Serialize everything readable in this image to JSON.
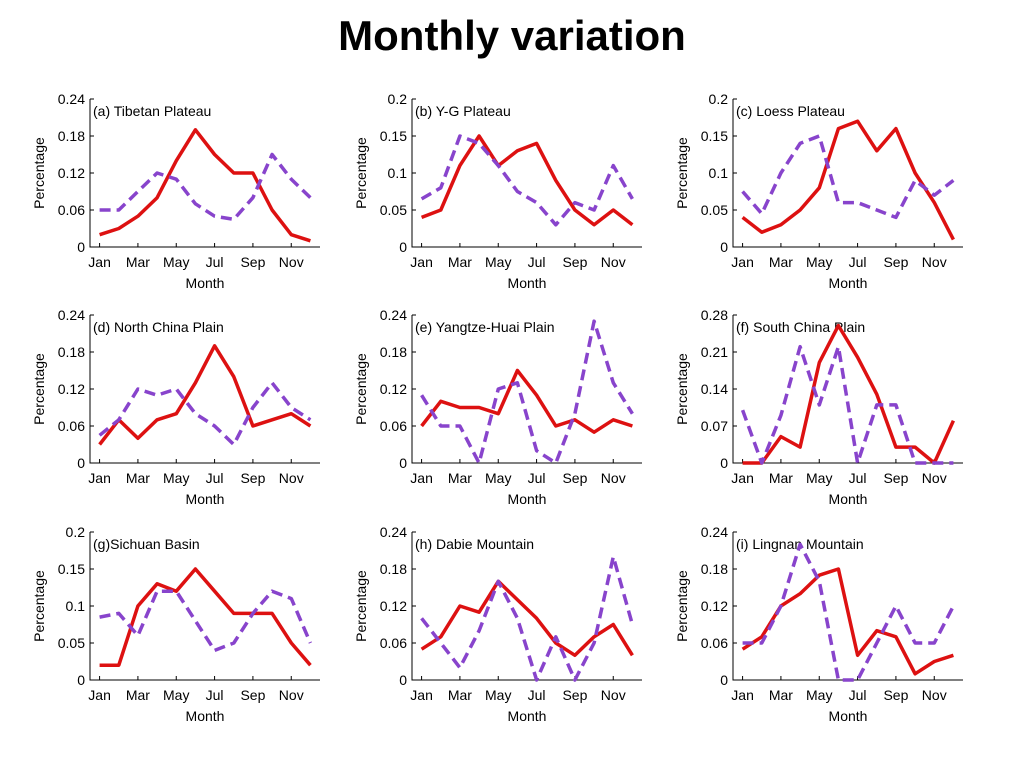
{
  "page_title": "Monthly variation",
  "colors": {
    "solid_series": "#dd1111",
    "dashed_series": "#8844cc",
    "axis": "#000000"
  },
  "chart_data": [
    {
      "type": "line",
      "title": "(a) Tibetan Plateau",
      "xlabel": "Month",
      "ylabel": "Percentage",
      "x": [
        1,
        2,
        3,
        4,
        5,
        6,
        7,
        8,
        9,
        10,
        11,
        12
      ],
      "xticks": [
        1,
        3,
        5,
        7,
        9,
        11
      ],
      "xtick_labels": [
        "Jan",
        "Mar",
        "May",
        "Jul",
        "Sep",
        "Nov"
      ],
      "ylim": [
        0,
        0.24
      ],
      "yticks": [
        0,
        0.06,
        0.12,
        0.18,
        0.24
      ],
      "ytick_labels": [
        "0",
        "0.06",
        "0.12",
        "0.18",
        "0.24"
      ],
      "series": [
        {
          "name": "solid",
          "style": "solid",
          "values": [
            0.02,
            0.03,
            0.05,
            0.08,
            0.14,
            0.19,
            0.15,
            0.12,
            0.12,
            0.06,
            0.02,
            0.01
          ]
        },
        {
          "name": "dashed",
          "style": "dashed",
          "values": [
            0.06,
            0.06,
            0.09,
            0.12,
            0.11,
            0.07,
            0.05,
            0.045,
            0.08,
            0.15,
            0.11,
            0.08
          ]
        }
      ]
    },
    {
      "type": "line",
      "title": "(b) Y-G Plateau",
      "xlabel": "Month",
      "ylabel": "Percentage",
      "x": [
        1,
        2,
        3,
        4,
        5,
        6,
        7,
        8,
        9,
        10,
        11,
        12
      ],
      "xticks": [
        1,
        3,
        5,
        7,
        9,
        11
      ],
      "xtick_labels": [
        "Jan",
        "Mar",
        "May",
        "Jul",
        "Sep",
        "Nov"
      ],
      "ylim": [
        0,
        0.2
      ],
      "yticks": [
        0,
        0.05,
        0.1,
        0.15,
        0.2
      ],
      "ytick_labels": [
        "0",
        "0.05",
        "0.1",
        "0.15",
        "0.2"
      ],
      "series": [
        {
          "name": "solid",
          "style": "solid",
          "values": [
            0.04,
            0.05,
            0.11,
            0.15,
            0.11,
            0.13,
            0.14,
            0.09,
            0.05,
            0.03,
            0.05,
            0.03
          ]
        },
        {
          "name": "dashed",
          "style": "dashed",
          "values": [
            0.065,
            0.08,
            0.15,
            0.14,
            0.11,
            0.075,
            0.06,
            0.03,
            0.06,
            0.05,
            0.11,
            0.065
          ]
        }
      ]
    },
    {
      "type": "line",
      "title": "(c) Loess Plateau",
      "xlabel": "Month",
      "ylabel": "Percentage",
      "x": [
        1,
        2,
        3,
        4,
        5,
        6,
        7,
        8,
        9,
        10,
        11,
        12
      ],
      "xticks": [
        1,
        3,
        5,
        7,
        9,
        11
      ],
      "xtick_labels": [
        "Jan",
        "Mar",
        "May",
        "Jul",
        "Sep",
        "Nov"
      ],
      "ylim": [
        0,
        0.2
      ],
      "yticks": [
        0,
        0.05,
        0.1,
        0.15,
        0.2
      ],
      "ytick_labels": [
        "0",
        "0.05",
        "0.1",
        "0.15",
        "0.2"
      ],
      "series": [
        {
          "name": "solid",
          "style": "solid",
          "values": [
            0.04,
            0.02,
            0.03,
            0.05,
            0.08,
            0.16,
            0.17,
            0.13,
            0.16,
            0.1,
            0.06,
            0.01
          ]
        },
        {
          "name": "dashed",
          "style": "dashed",
          "values": [
            0.075,
            0.045,
            0.1,
            0.14,
            0.15,
            0.06,
            0.06,
            0.05,
            0.04,
            0.09,
            0.07,
            0.09
          ]
        }
      ]
    },
    {
      "type": "line",
      "title": "(d) North China Plain",
      "xlabel": "Month",
      "ylabel": "Percentage",
      "x": [
        1,
        2,
        3,
        4,
        5,
        6,
        7,
        8,
        9,
        10,
        11,
        12
      ],
      "xticks": [
        1,
        3,
        5,
        7,
        9,
        11
      ],
      "xtick_labels": [
        "Jan",
        "Mar",
        "May",
        "Jul",
        "Sep",
        "Nov"
      ],
      "ylim": [
        0,
        0.24
      ],
      "yticks": [
        0,
        0.06,
        0.12,
        0.18,
        0.24
      ],
      "ytick_labels": [
        "0",
        "0.06",
        "0.12",
        "0.18",
        "0.24"
      ],
      "series": [
        {
          "name": "solid",
          "style": "solid",
          "values": [
            0.03,
            0.07,
            0.04,
            0.07,
            0.08,
            0.13,
            0.19,
            0.14,
            0.06,
            0.07,
            0.08,
            0.06
          ]
        },
        {
          "name": "dashed",
          "style": "dashed",
          "values": [
            0.045,
            0.07,
            0.12,
            0.11,
            0.12,
            0.08,
            0.06,
            0.03,
            0.09,
            0.13,
            0.09,
            0.07
          ]
        }
      ]
    },
    {
      "type": "line",
      "title": "(e) Yangtze-Huai Plain",
      "xlabel": "Month",
      "ylabel": "Percentage",
      "x": [
        1,
        2,
        3,
        4,
        5,
        6,
        7,
        8,
        9,
        10,
        11,
        12
      ],
      "xticks": [
        1,
        3,
        5,
        7,
        9,
        11
      ],
      "xtick_labels": [
        "Jan",
        "Mar",
        "May",
        "Jul",
        "Sep",
        "Nov"
      ],
      "ylim": [
        0,
        0.24
      ],
      "yticks": [
        0,
        0.06,
        0.12,
        0.18,
        0.24
      ],
      "ytick_labels": [
        "0",
        "0.06",
        "0.12",
        "0.18",
        "0.24"
      ],
      "series": [
        {
          "name": "solid",
          "style": "solid",
          "values": [
            0.06,
            0.1,
            0.09,
            0.09,
            0.08,
            0.15,
            0.11,
            0.06,
            0.07,
            0.05,
            0.07,
            0.06
          ]
        },
        {
          "name": "dashed",
          "style": "dashed",
          "values": [
            0.11,
            0.06,
            0.06,
            0.0,
            0.12,
            0.13,
            0.02,
            0.0,
            0.08,
            0.23,
            0.13,
            0.08
          ]
        }
      ]
    },
    {
      "type": "line",
      "title": "(f) South China Plain",
      "xlabel": "Month",
      "ylabel": "Percentage",
      "x": [
        1,
        2,
        3,
        4,
        5,
        6,
        7,
        8,
        9,
        10,
        11,
        12
      ],
      "xticks": [
        1,
        3,
        5,
        7,
        9,
        11
      ],
      "xtick_labels": [
        "Jan",
        "Mar",
        "May",
        "Jul",
        "Sep",
        "Nov"
      ],
      "ylim": [
        0,
        0.28
      ],
      "yticks": [
        0,
        0.07,
        0.14,
        0.21,
        0.28
      ],
      "ytick_labels": [
        "0",
        "0.07",
        "0.14",
        "0.21",
        "0.28"
      ],
      "series": [
        {
          "name": "solid",
          "style": "solid",
          "values": [
            0.0,
            0.0,
            0.05,
            0.03,
            0.19,
            0.26,
            0.2,
            0.13,
            0.03,
            0.03,
            0.0,
            0.08
          ]
        },
        {
          "name": "dashed",
          "style": "dashed",
          "values": [
            0.1,
            0.0,
            0.09,
            0.22,
            0.11,
            0.22,
            0.0,
            0.11,
            0.11,
            0.0,
            0.0,
            0.0
          ]
        }
      ]
    },
    {
      "type": "line",
      "title": "(g)Sichuan Basin",
      "xlabel": "Month",
      "ylabel": "Percentage",
      "x": [
        1,
        2,
        3,
        4,
        5,
        6,
        7,
        8,
        9,
        10,
        11,
        12
      ],
      "xticks": [
        1,
        3,
        5,
        7,
        9,
        11
      ],
      "xtick_labels": [
        "Jan",
        "Mar",
        "May",
        "Jul",
        "Sep",
        "Nov"
      ],
      "ylim": [
        0,
        0.2
      ],
      "yticks": [
        0,
        0.05,
        0.1,
        0.15,
        0.2
      ],
      "ytick_labels": [
        "0",
        "0.05",
        "0.1",
        "0.15",
        "0.2"
      ],
      "series": [
        {
          "name": "solid",
          "style": "solid",
          "values": [
            0.02,
            0.02,
            0.1,
            0.13,
            0.12,
            0.15,
            0.12,
            0.09,
            0.09,
            0.09,
            0.05,
            0.02
          ]
        },
        {
          "name": "dashed",
          "style": "dashed",
          "values": [
            0.085,
            0.09,
            0.06,
            0.12,
            0.12,
            0.08,
            0.04,
            0.05,
            0.09,
            0.12,
            0.11,
            0.05
          ]
        }
      ]
    },
    {
      "type": "line",
      "title": "(h) Dabie Mountain",
      "xlabel": "Month",
      "ylabel": "Percentage",
      "x": [
        1,
        2,
        3,
        4,
        5,
        6,
        7,
        8,
        9,
        10,
        11,
        12
      ],
      "xticks": [
        1,
        3,
        5,
        7,
        9,
        11
      ],
      "xtick_labels": [
        "Jan",
        "Mar",
        "May",
        "Jul",
        "Sep",
        "Nov"
      ],
      "ylim": [
        0,
        0.24
      ],
      "yticks": [
        0,
        0.06,
        0.12,
        0.18,
        0.24
      ],
      "ytick_labels": [
        "0",
        "0.06",
        "0.12",
        "0.18",
        "0.24"
      ],
      "series": [
        {
          "name": "solid",
          "style": "solid",
          "values": [
            0.05,
            0.07,
            0.12,
            0.11,
            0.16,
            0.13,
            0.1,
            0.06,
            0.04,
            0.07,
            0.09,
            0.04
          ]
        },
        {
          "name": "dashed",
          "style": "dashed",
          "values": [
            0.1,
            0.06,
            0.02,
            0.08,
            0.16,
            0.1,
            0.0,
            0.07,
            0.0,
            0.06,
            0.2,
            0.09
          ]
        }
      ]
    },
    {
      "type": "line",
      "title": "(i) Lingnan Mountain",
      "xlabel": "Month",
      "ylabel": "Percentage",
      "x": [
        1,
        2,
        3,
        4,
        5,
        6,
        7,
        8,
        9,
        10,
        11,
        12
      ],
      "xticks": [
        1,
        3,
        5,
        7,
        9,
        11
      ],
      "xtick_labels": [
        "Jan",
        "Mar",
        "May",
        "Jul",
        "Sep",
        "Nov"
      ],
      "ylim": [
        0,
        0.24
      ],
      "yticks": [
        0,
        0.06,
        0.12,
        0.18,
        0.24
      ],
      "ytick_labels": [
        "0",
        "0.06",
        "0.12",
        "0.18",
        "0.24"
      ],
      "series": [
        {
          "name": "solid",
          "style": "solid",
          "values": [
            0.05,
            0.07,
            0.12,
            0.14,
            0.17,
            0.18,
            0.04,
            0.08,
            0.07,
            0.01,
            0.03,
            0.04
          ]
        },
        {
          "name": "dashed",
          "style": "dashed",
          "values": [
            0.06,
            0.06,
            0.12,
            0.22,
            0.16,
            0.0,
            0.0,
            0.06,
            0.12,
            0.06,
            0.06,
            0.12
          ]
        }
      ]
    }
  ]
}
